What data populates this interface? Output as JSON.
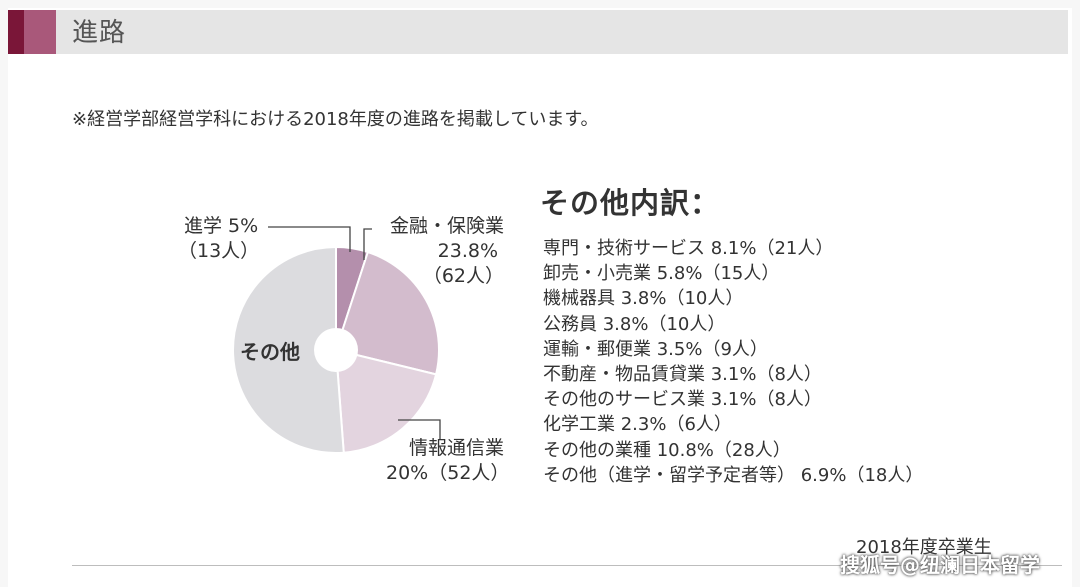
{
  "header": {
    "title": "進路"
  },
  "note": "※経営学部経営学科における2018年度の進路を掲載しています。",
  "chart_data": {
    "type": "pie",
    "title": "",
    "slices": [
      {
        "label": "進学 5%",
        "count": "（13人）",
        "value": 5,
        "color": "#b48fac"
      },
      {
        "label": "金融・保険業 23.8%",
        "count": "（62人）",
        "value": 23.8,
        "color": "#d3bccd"
      },
      {
        "label": "情報通信業 20%",
        "count": "（52人）",
        "value": 20,
        "color": "#e3d4df"
      },
      {
        "label": "その他",
        "count": "",
        "value": 51.2,
        "color": "#dcdcdf"
      }
    ],
    "labels": {
      "shingaku_l1": "進学 5%",
      "shingaku_l2": "（13人）",
      "kinyu_l1": "金融・保険業",
      "kinyu_l2": "23.8%",
      "kinyu_l3": "（62人）",
      "joho_l1": "情報通信業",
      "joho_l2": "20%（52人）",
      "sonota": "その他"
    }
  },
  "breakdown": {
    "title": "その他内訳：",
    "items": [
      "専門・技術サービス 8.1%（21人）",
      "卸売・小売業 5.8%（15人）",
      "機械器具 3.8%（10人）",
      "公務員 3.8%（10人）",
      "運輸・郵便業 3.5%（9人）",
      "不動産・物品賃貸業 3.1%（8人）",
      "その他のサービス業 3.1%（8人）",
      "化学工業 2.3%（6人）",
      "その他の業種 10.8%（28人）",
      "その他（進学・留学予定者等） 6.9%（18人）"
    ]
  },
  "footer": {
    "caption": "2018年度卒業生"
  },
  "watermark": "搜狐号@纽澜日本留学"
}
